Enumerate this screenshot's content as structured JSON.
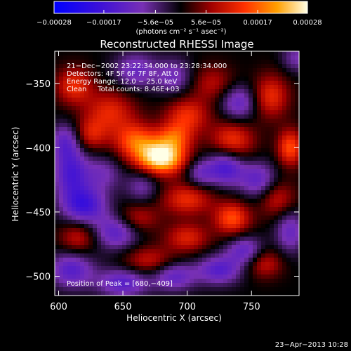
{
  "chart_data": {
    "type": "heatmap",
    "title": "Reconstructed RHESSI Image",
    "xlabel": "Heliocentric X (arcsec)",
    "ylabel": "Heliocentric Y (arcsec)",
    "xlim": [
      597,
      787
    ],
    "ylim": [
      -515,
      -325
    ],
    "x_ticks": [
      600,
      650,
      700,
      750
    ],
    "x_tick_labels": [
      "600",
      "650",
      "700",
      "750"
    ],
    "y_ticks": [
      -350,
      -400,
      -450,
      -500
    ],
    "y_tick_labels": [
      "−350",
      "−400",
      "−450",
      "−500"
    ],
    "colorbar": {
      "range": [
        -0.00028,
        0.00028
      ],
      "ticks": [
        -0.00028,
        -0.00017,
        -5.6e-05,
        5.6e-05,
        0.00017,
        0.00028
      ],
      "tick_labels": [
        "−0.00028",
        "−0.00017",
        "−5.6e−05",
        "5.6e−05",
        "0.00017",
        "0.00028"
      ],
      "units": "(photons cm⁻² s⁻¹ asec⁻²)"
    },
    "annotations": [
      "21−Dec−2002 23:22:34.000 to 23:28:34.000",
      "Detectors: 4F 5F 6F 7F 8F, Att 0",
      "Energy Range: 12.0 − 25.0 keV",
      "Clean     Total counts: 8.46E+03"
    ],
    "peak_label": "Position of Peak = [680,−409]",
    "peak_position": [
      680,
      -409
    ],
    "sources": [
      {
        "x": 680,
        "y": -408,
        "amp": 1.0,
        "sx": 13,
        "sy": 9
      },
      {
        "x": 660,
        "y": -395,
        "amp": 0.55,
        "sx": 12,
        "sy": 10
      },
      {
        "x": 690,
        "y": -392,
        "amp": 0.45,
        "sx": 10,
        "sy": 8
      },
      {
        "x": 700,
        "y": -375,
        "amp": 0.45,
        "sx": 12,
        "sy": 10
      },
      {
        "x": 640,
        "y": -372,
        "amp": 0.42,
        "sx": 14,
        "sy": 12
      },
      {
        "x": 612,
        "y": -352,
        "amp": 0.45,
        "sx": 10,
        "sy": 10
      },
      {
        "x": 625,
        "y": -390,
        "amp": 0.35,
        "sx": 9,
        "sy": 9
      },
      {
        "x": 735,
        "y": -395,
        "amp": 0.5,
        "sx": 12,
        "sy": 11
      },
      {
        "x": 765,
        "y": -360,
        "amp": 0.45,
        "sx": 10,
        "sy": 12
      },
      {
        "x": 780,
        "y": -400,
        "amp": 0.55,
        "sx": 7,
        "sy": 10
      },
      {
        "x": 700,
        "y": -440,
        "amp": 0.45,
        "sx": 14,
        "sy": 9
      },
      {
        "x": 735,
        "y": -455,
        "amp": 0.55,
        "sx": 10,
        "sy": 9
      },
      {
        "x": 770,
        "y": -440,
        "amp": 0.35,
        "sx": 10,
        "sy": 10
      },
      {
        "x": 660,
        "y": -455,
        "amp": 0.35,
        "sx": 12,
        "sy": 8
      },
      {
        "x": 700,
        "y": -470,
        "amp": 0.4,
        "sx": 12,
        "sy": 8
      },
      {
        "x": 670,
        "y": -488,
        "amp": 0.35,
        "sx": 14,
        "sy": 8
      },
      {
        "x": 615,
        "y": -470,
        "amp": 0.35,
        "sx": 10,
        "sy": 9
      },
      {
        "x": 760,
        "y": -490,
        "amp": 0.35,
        "sx": 10,
        "sy": 8
      },
      {
        "x": 720,
        "y": -350,
        "amp": 0.3,
        "sx": 12,
        "sy": 10
      },
      {
        "x": 610,
        "y": -420,
        "amp": -0.55,
        "sx": 10,
        "sy": 14
      },
      {
        "x": 620,
        "y": -445,
        "amp": -0.6,
        "sx": 12,
        "sy": 10
      },
      {
        "x": 610,
        "y": -495,
        "amp": -0.5,
        "sx": 12,
        "sy": 10
      },
      {
        "x": 645,
        "y": -465,
        "amp": -0.5,
        "sx": 12,
        "sy": 10
      },
      {
        "x": 650,
        "y": -505,
        "amp": -0.5,
        "sx": 14,
        "sy": 8
      },
      {
        "x": 690,
        "y": -500,
        "amp": -0.45,
        "sx": 12,
        "sy": 8
      },
      {
        "x": 725,
        "y": -495,
        "amp": -0.5,
        "sx": 12,
        "sy": 8
      },
      {
        "x": 745,
        "y": -480,
        "amp": -0.45,
        "sx": 10,
        "sy": 8
      },
      {
        "x": 730,
        "y": -415,
        "amp": -0.6,
        "sx": 10,
        "sy": 10
      },
      {
        "x": 755,
        "y": -425,
        "amp": -0.45,
        "sx": 10,
        "sy": 10
      },
      {
        "x": 740,
        "y": -365,
        "amp": -0.45,
        "sx": 10,
        "sy": 10
      },
      {
        "x": 710,
        "y": -420,
        "amp": -0.35,
        "sx": 8,
        "sy": 8
      },
      {
        "x": 660,
        "y": -340,
        "amp": -0.4,
        "sx": 12,
        "sy": 10
      },
      {
        "x": 690,
        "y": -345,
        "amp": -0.35,
        "sx": 10,
        "sy": 10
      },
      {
        "x": 635,
        "y": -420,
        "amp": -0.3,
        "sx": 10,
        "sy": 10
      },
      {
        "x": 665,
        "y": -430,
        "amp": -0.3,
        "sx": 9,
        "sy": 9
      },
      {
        "x": 605,
        "y": -395,
        "amp": -0.4,
        "sx": 8,
        "sy": 10
      },
      {
        "x": 780,
        "y": -465,
        "amp": -0.4,
        "sx": 8,
        "sy": 12
      },
      {
        "x": 785,
        "y": -330,
        "amp": -0.3,
        "sx": 8,
        "sy": 8
      }
    ]
  },
  "footer": {
    "date": "23−Apr−2013 10:28"
  }
}
